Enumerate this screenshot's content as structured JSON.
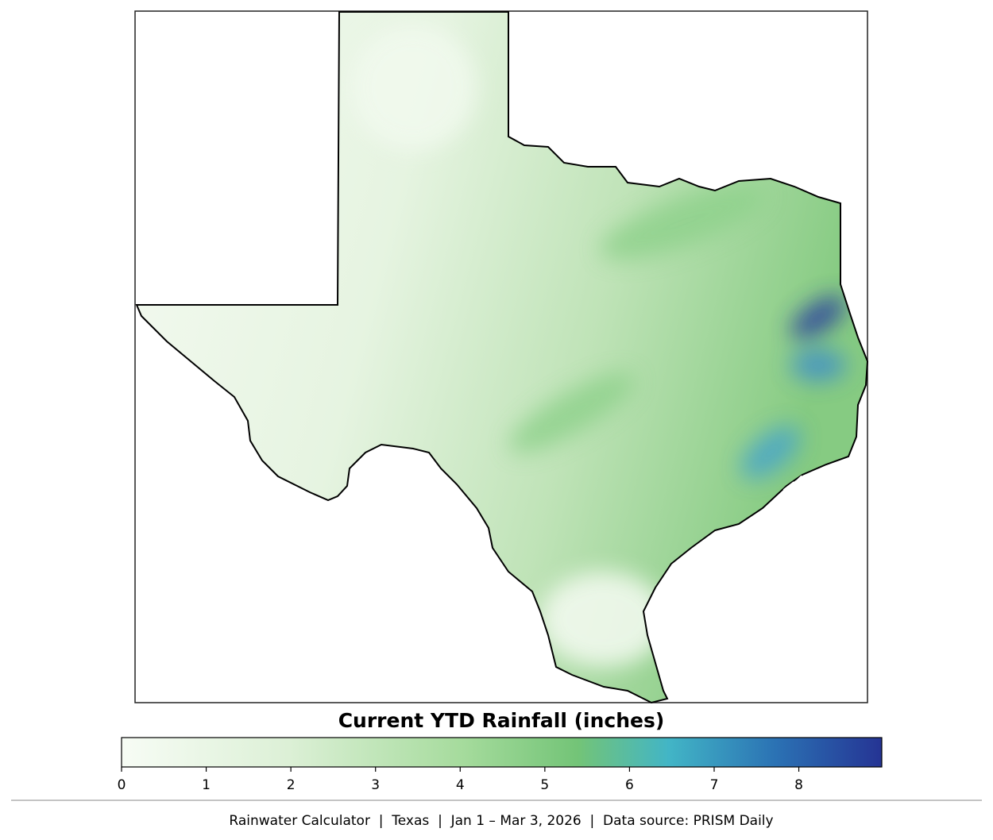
{
  "colorbar": {
    "title": "Current YTD Rainfall (inches)",
    "range": [
      0,
      8.98
    ],
    "ticks": [
      0,
      1,
      2,
      3,
      4,
      5,
      6,
      7,
      8
    ]
  },
  "footer": "Rainwater Calculator  |  Texas  |  Jan 1 – Mar 3, 2026  |  Data source: PRISM Daily"
}
